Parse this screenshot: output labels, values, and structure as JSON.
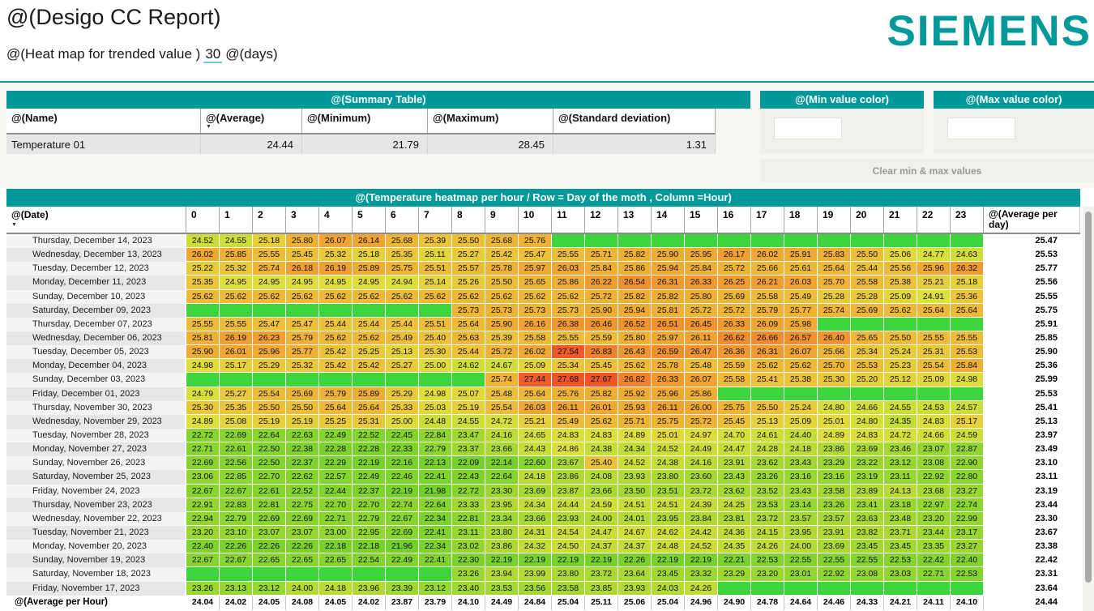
{
  "header": {
    "title": "@(Desigo CC Report)",
    "subtitle_prefix": "@(Heat map for trended value )",
    "days_value": "30",
    "subtitle_suffix": "@(days)",
    "logo": "SIEMENS"
  },
  "colors": {
    "brand_teal": "#009999",
    "empty_cell_green": "#3ed43e"
  },
  "summary_table": {
    "title": "@(Summary Table)",
    "columns": [
      "@(Name)",
      "@(Average)",
      "@(Minimum)",
      "@(Maximum)",
      "@(Standard deviation)"
    ],
    "row": {
      "name": "Temperature 01",
      "average": "24.44",
      "minimum": "21.79",
      "maximum": "28.45",
      "std_deviation": "1.31"
    }
  },
  "min_color_panel": {
    "title": "@(Min value color)",
    "value": ""
  },
  "max_color_panel": {
    "title": "@(Max value color)",
    "value": ""
  },
  "clear_button_label": "Clear min & max values",
  "chart_data": {
    "type": "heatmap",
    "title": "@(Temperature heatmap per hour / Row = Day of the moth , Column =Hour)",
    "row_header": "@(Date)",
    "columns": [
      "0",
      "1",
      "2",
      "3",
      "4",
      "5",
      "6",
      "7",
      "8",
      "9",
      "10",
      "11",
      "12",
      "13",
      "14",
      "15",
      "16",
      "17",
      "18",
      "19",
      "20",
      "21",
      "22",
      "23"
    ],
    "avg_column_header": "@(Average per day)",
    "footer_label": "@(Average per Hour)",
    "value_min": 21.79,
    "value_max": 28.45,
    "rows": [
      {
        "date": "Thursday, December 14, 2023",
        "values": [
          "24.52",
          "24.55",
          "25.18",
          "25.80",
          "26.07",
          "26.14",
          "25.68",
          "25.39",
          "25.50",
          "25.68",
          "25.76",
          null,
          null,
          null,
          null,
          null,
          null,
          null,
          null,
          null,
          null,
          null,
          null,
          null
        ],
        "avg": "25.47"
      },
      {
        "date": "Wednesday, December 13, 2023",
        "values": [
          "26.02",
          "25.85",
          "25.55",
          "25.45",
          "25.32",
          "25.18",
          "25.35",
          "25.11",
          "25.27",
          "25.42",
          "25.47",
          "25.55",
          "25.71",
          "25.82",
          "25.90",
          "25.95",
          "26.17",
          "26.02",
          "25.91",
          "25.83",
          "25.50",
          "25.06",
          "24.77",
          "24.63"
        ],
        "avg": "25.53"
      },
      {
        "date": "Tuesday, December 12, 2023",
        "values": [
          "25.22",
          "25.32",
          "25.74",
          "26.18",
          "26.19",
          "25.89",
          "25.75",
          "25.51",
          "25.57",
          "25.78",
          "25.97",
          "26.03",
          "25.84",
          "25.86",
          "25.94",
          "25.84",
          "25.72",
          "25.66",
          "25.61",
          "25.64",
          "25.44",
          "25.56",
          "25.96",
          "26.32"
        ],
        "avg": "25.77"
      },
      {
        "date": "Monday, December 11, 2023",
        "values": [
          "25.35",
          "24.95",
          "24.95",
          "24.95",
          "24.95",
          "24.95",
          "24.94",
          "25.14",
          "25.26",
          "25.50",
          "25.65",
          "25.86",
          "26.22",
          "26.54",
          "26.31",
          "26.33",
          "26.25",
          "26.21",
          "26.03",
          "25.70",
          "25.58",
          "25.38",
          "25.21",
          "25.18"
        ],
        "avg": "25.56"
      },
      {
        "date": "Sunday, December 10, 2023",
        "values": [
          "25.62",
          "25.62",
          "25.62",
          "25.62",
          "25.62",
          "25.62",
          "25.62",
          "25.62",
          "25.62",
          "25.62",
          "25.62",
          "25.62",
          "25.72",
          "25.82",
          "25.82",
          "25.80",
          "25.69",
          "25.58",
          "25.49",
          "25.28",
          "25.28",
          "25.09",
          "24.91",
          "25.36"
        ],
        "avg": "25.55"
      },
      {
        "date": "Saturday, December 09, 2023",
        "values": [
          null,
          null,
          null,
          null,
          null,
          null,
          null,
          null,
          "25.73",
          "25.73",
          "25.73",
          "25.73",
          "25.90",
          "25.94",
          "25.81",
          "25.72",
          "25.72",
          "25.79",
          "25.77",
          "25.74",
          "25.69",
          "25.62",
          "25.64",
          "25.64"
        ],
        "avg": "25.75"
      },
      {
        "date": "Thursday, December 07, 2023",
        "values": [
          "25.55",
          "25.55",
          "25.47",
          "25.47",
          "25.44",
          "25.44",
          "25.44",
          "25.51",
          "25.64",
          "25.90",
          "26.16",
          "26.38",
          "26.46",
          "26.52",
          "26.51",
          "26.45",
          "26.33",
          "26.09",
          "25.98",
          null,
          null,
          null,
          null,
          null
        ],
        "avg": "25.91"
      },
      {
        "date": "Wednesday, December 06, 2023",
        "values": [
          "25.81",
          "26.19",
          "26.23",
          "25.79",
          "25.62",
          "25.62",
          "25.49",
          "25.40",
          "25.63",
          "25.39",
          "25.58",
          "25.55",
          "25.59",
          "25.80",
          "25.97",
          "26.11",
          "26.62",
          "26.66",
          "26.57",
          "26.40",
          "25.65",
          "25.50",
          "25.55",
          "25.55"
        ],
        "avg": "25.85"
      },
      {
        "date": "Tuesday, December 05, 2023",
        "values": [
          "25.90",
          "26.01",
          "25.96",
          "25.77",
          "25.42",
          "25.25",
          "25.13",
          "25.30",
          "25.44",
          "25.72",
          "26.02",
          "27.54",
          "26.83",
          "26.43",
          "26.59",
          "26.47",
          "26.36",
          "26.31",
          "26.07",
          "25.66",
          "25.34",
          "25.24",
          "25.31",
          "25.53"
        ],
        "avg": "25.90"
      },
      {
        "date": "Monday, December 04, 2023",
        "values": [
          "24.98",
          "25.17",
          "25.29",
          "25.32",
          "25.42",
          "25.42",
          "25.27",
          "25.00",
          "24.62",
          "24.67",
          "25.09",
          "25.34",
          "25.45",
          "25.62",
          "25.78",
          "25.48",
          "25.59",
          "25.62",
          "25.62",
          "25.70",
          "25.53",
          "25.23",
          "25.54",
          "25.84"
        ],
        "avg": "25.36"
      },
      {
        "date": "Sunday, December 03, 2023",
        "values": [
          null,
          null,
          null,
          null,
          null,
          null,
          null,
          null,
          null,
          "25.74",
          "27.44",
          "27.68",
          "27.67",
          "26.82",
          "26.33",
          "26.07",
          "25.58",
          "25.41",
          "25.38",
          "25.30",
          "25.20",
          "25.12",
          "25.09",
          "24.98"
        ],
        "avg": "25.99"
      },
      {
        "date": "Friday, December 01, 2023",
        "values": [
          "24.79",
          "25.27",
          "25.54",
          "25.69",
          "25.79",
          "25.89",
          "25.29",
          "24.98",
          "25.07",
          "25.48",
          "25.64",
          "25.76",
          "25.82",
          "25.92",
          "25.96",
          "25.86",
          null,
          null,
          null,
          null,
          null,
          null,
          null,
          null
        ],
        "avg": "25.53"
      },
      {
        "date": "Thursday, November 30, 2023",
        "values": [
          "25.30",
          "25.35",
          "25.50",
          "25.50",
          "25.64",
          "25.64",
          "25.33",
          "25.03",
          "25.19",
          "25.54",
          "26.03",
          "26.11",
          "26.01",
          "25.93",
          "26.11",
          "26.00",
          "25.75",
          "25.50",
          "25.24",
          "24.80",
          "24.66",
          "24.55",
          "24.53",
          "24.57"
        ],
        "avg": "25.41"
      },
      {
        "date": "Wednesday, November 29, 2023",
        "values": [
          "24.89",
          "25.08",
          "25.19",
          "25.19",
          "25.25",
          "25.31",
          "25.00",
          "24.48",
          "24.55",
          "24.72",
          "25.21",
          "25.49",
          "25.62",
          "25.71",
          "25.75",
          "25.72",
          "25.45",
          "25.13",
          "25.09",
          "25.01",
          "24.80",
          "24.35",
          "24.83",
          "25.17"
        ],
        "avg": "25.13"
      },
      {
        "date": "Tuesday, November 28, 2023",
        "values": [
          "22.72",
          "22.69",
          "22.64",
          "22.63",
          "22.49",
          "22.52",
          "22.45",
          "22.84",
          "23.47",
          "24.16",
          "24.65",
          "24.83",
          "24.83",
          "24.89",
          "25.01",
          "24.97",
          "24.70",
          "24.61",
          "24.40",
          "24.89",
          "24.83",
          "24.72",
          "24.66",
          "24.59"
        ],
        "avg": "23.97"
      },
      {
        "date": "Monday, November 27, 2023",
        "values": [
          "22.71",
          "22.61",
          "22.50",
          "22.38",
          "22.28",
          "22.28",
          "22.33",
          "22.79",
          "23.37",
          "23.66",
          "24.43",
          "24.86",
          "24.38",
          "24.34",
          "24.52",
          "24.49",
          "24.47",
          "24.28",
          "24.18",
          "23.86",
          "23.69",
          "23.46",
          "23.07",
          "22.87"
        ],
        "avg": "23.49"
      },
      {
        "date": "Sunday, November 26, 2023",
        "values": [
          "22.69",
          "22.56",
          "22.50",
          "22.37",
          "22.29",
          "22.19",
          "22.16",
          "22.13",
          "22.09",
          "22.14",
          "22.60",
          "23.67",
          "25.40",
          "24.52",
          "24.38",
          "24.16",
          "23.91",
          "23.62",
          "23.43",
          "23.29",
          "23.22",
          "23.12",
          "23.08",
          "22.90"
        ],
        "avg": "23.10"
      },
      {
        "date": "Saturday, November 25, 2023",
        "values": [
          "23.06",
          "22.85",
          "22.70",
          "22.62",
          "22.57",
          "22.49",
          "22.46",
          "22.41",
          "22.43",
          "22.64",
          "24.18",
          "23.86",
          "24.08",
          "23.93",
          "23.80",
          "23.60",
          "23.43",
          "23.26",
          "23.16",
          "23.16",
          "23.19",
          "23.11",
          "22.92",
          "22.80"
        ],
        "avg": "23.11"
      },
      {
        "date": "Friday, November 24, 2023",
        "values": [
          "22.67",
          "22.67",
          "22.61",
          "22.52",
          "22.44",
          "22.37",
          "22.19",
          "21.98",
          "22.72",
          "23.30",
          "23.69",
          "23.87",
          "23.66",
          "23.50",
          "23.51",
          "23.72",
          "23.62",
          "23.52",
          "23.43",
          "23.58",
          "23.89",
          "24.13",
          "23.68",
          "23.27"
        ],
        "avg": "23.19"
      },
      {
        "date": "Thursday, November 23, 2023",
        "values": [
          "22.91",
          "22.83",
          "22.81",
          "22.75",
          "22.70",
          "22.70",
          "22.74",
          "22.64",
          "23.33",
          "23.95",
          "24.34",
          "24.44",
          "24.59",
          "24.51",
          "24.51",
          "24.39",
          "24.25",
          "23.53",
          "23.14",
          "23.26",
          "23.41",
          "23.18",
          "22.97",
          "22.74"
        ],
        "avg": "23.44"
      },
      {
        "date": "Wednesday, November 22, 2023",
        "values": [
          "22.94",
          "22.79",
          "22.69",
          "22.69",
          "22.71",
          "22.79",
          "22.67",
          "22.34",
          "22.81",
          "23.34",
          "23.66",
          "23.93",
          "24.00",
          "24.01",
          "23.95",
          "23.84",
          "23.81",
          "23.72",
          "23.57",
          "23.57",
          "23.63",
          "23.48",
          "23.20",
          "22.99"
        ],
        "avg": "23.30"
      },
      {
        "date": "Tuesday, November 21, 2023",
        "values": [
          "23.20",
          "23.10",
          "23.07",
          "23.07",
          "23.00",
          "22.95",
          "22.69",
          "22.41",
          "23.11",
          "23.80",
          "24.31",
          "24.54",
          "24.47",
          "24.67",
          "24.62",
          "24.42",
          "24.36",
          "24.15",
          "23.95",
          "23.91",
          "23.82",
          "23.71",
          "23.44",
          "23.17"
        ],
        "avg": "23.67"
      },
      {
        "date": "Monday, November 20, 2023",
        "values": [
          "22.40",
          "22.26",
          "22.26",
          "22.26",
          "22.18",
          "22.18",
          "21.96",
          "22.34",
          "23.02",
          "23.86",
          "24.32",
          "24.50",
          "24.37",
          "24.37",
          "24.48",
          "24.52",
          "24.35",
          "24.26",
          "24.00",
          "23.69",
          "23.45",
          "23.45",
          "23.35",
          "23.27"
        ],
        "avg": "23.38"
      },
      {
        "date": "Sunday, November 19, 2023",
        "values": [
          "22.67",
          "22.67",
          "22.65",
          "22.65",
          "22.65",
          "22.54",
          "22.49",
          "22.41",
          "22.30",
          "22.19",
          "22.19",
          "22.19",
          "22.19",
          "22.26",
          "22.19",
          "22.19",
          "22.21",
          "22.53",
          "22.55",
          "22.55",
          "22.55",
          "22.53",
          "22.42",
          "22.40"
        ],
        "avg": "22.42"
      },
      {
        "date": "Saturday, November 18, 2023",
        "values": [
          null,
          null,
          null,
          null,
          null,
          null,
          null,
          null,
          "23.26",
          "23.94",
          "23.99",
          "23.80",
          "23.72",
          "23.64",
          "23.45",
          "23.32",
          "23.29",
          "23.20",
          "23.01",
          "22.92",
          "23.08",
          "23.03",
          "22.71",
          "22.53"
        ],
        "avg": "23.31"
      },
      {
        "date": "Friday, November 17, 2023",
        "values": [
          "23.26",
          "23.13",
          "23.12",
          "24.00",
          "24.18",
          "23.96",
          "23.39",
          "23.12",
          "23.40",
          "23.53",
          "23.56",
          "23.58",
          "23.85",
          "23.93",
          "24.03",
          "24.26",
          null,
          null,
          null,
          null,
          null,
          null,
          null,
          null
        ],
        "avg": "23.64"
      }
    ],
    "footer_values": [
      "24.04",
      "24.02",
      "24.05",
      "24.08",
      "24.05",
      "24.02",
      "23.87",
      "23.79",
      "24.10",
      "24.49",
      "24.84",
      "25.04",
      "25.11",
      "25.06",
      "25.04",
      "24.96",
      "24.90",
      "24.78",
      "24.64",
      "24.46",
      "24.33",
      "24.21",
      "24.11",
      "24.10"
    ],
    "overall_average": "24.44"
  }
}
